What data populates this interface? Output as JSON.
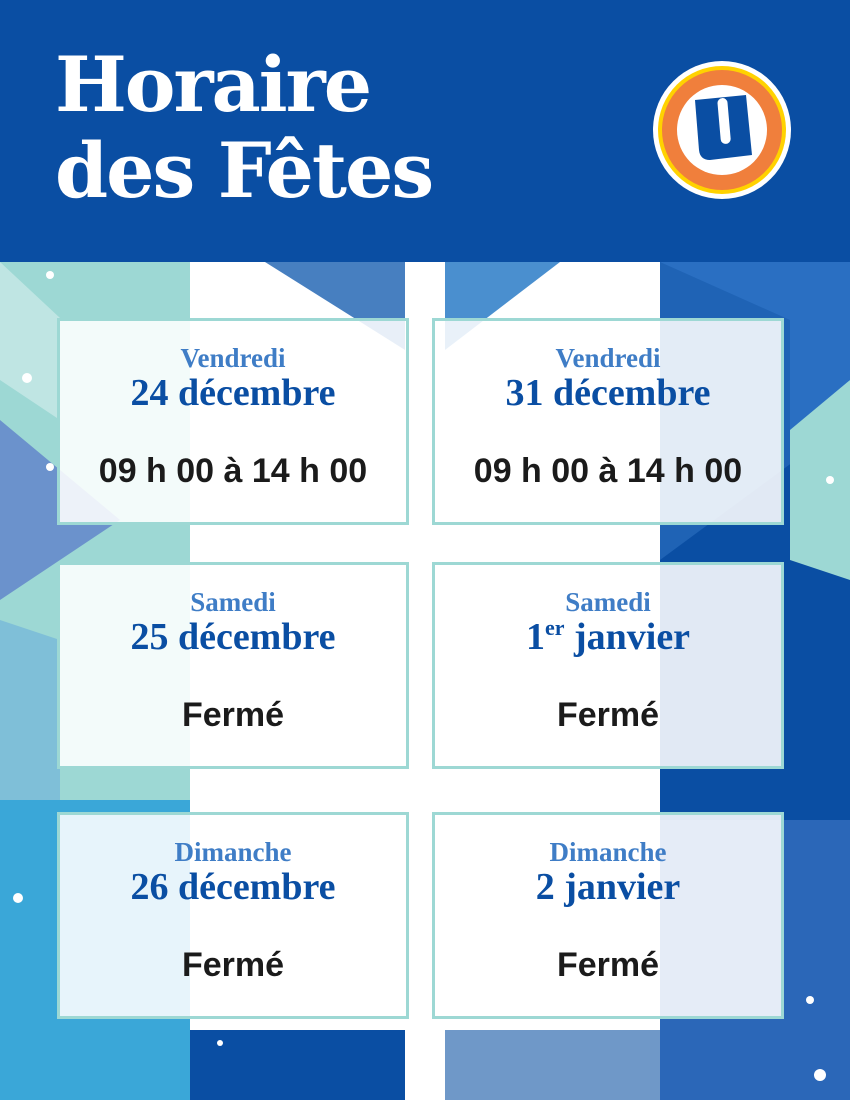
{
  "header": {
    "title_line1": "Horaire",
    "title_line2": "des Fêtes",
    "logo_letter": "U"
  },
  "colors": {
    "brand_blue": "#0a4ea3",
    "light_blue": "#3f7dc6",
    "teal": "#9dd8d4",
    "logo_orange": "#f07f3c",
    "logo_yellow": "#ffd200"
  },
  "schedule": [
    {
      "day": "Vendredi",
      "date": "24 décembre",
      "date_sup": "",
      "hours": "09 h 00 à 14 h 00"
    },
    {
      "day": "Vendredi",
      "date": "31 décembre",
      "date_sup": "",
      "hours": "09 h 00 à 14 h 00"
    },
    {
      "day": "Samedi",
      "date": "25 décembre",
      "date_sup": "",
      "hours": "Fermé"
    },
    {
      "day": "Samedi",
      "date": "1",
      "date_sup": "er",
      "date_rest": " janvier",
      "hours": "Fermé"
    },
    {
      "day": "Dimanche",
      "date": "26 décembre",
      "date_sup": "",
      "hours": "Fermé"
    },
    {
      "day": "Dimanche",
      "date": "2 janvier",
      "date_sup": "",
      "hours": "Fermé"
    }
  ]
}
